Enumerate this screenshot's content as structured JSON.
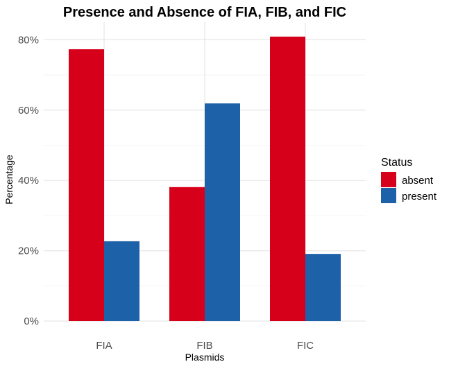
{
  "chart_data": {
    "type": "bar",
    "title": "Presence and Absence of FIA, FIB, and FIC",
    "xlabel": "Plasmids",
    "ylabel": "Percentage",
    "categories": [
      "FIA",
      "FIB",
      "FIC"
    ],
    "series": [
      {
        "name": "absent",
        "color": "#D7001A",
        "values": [
          77.3,
          38.1,
          80.9
        ]
      },
      {
        "name": "present",
        "color": "#1D62A8",
        "values": [
          22.7,
          61.9,
          19.1
        ]
      }
    ],
    "ylim": [
      0,
      85
    ],
    "yticks": [
      0,
      20,
      40,
      60,
      80
    ],
    "ytick_labels": [
      "0%",
      "20%",
      "40%",
      "60%",
      "80%"
    ],
    "grid": true,
    "legend": {
      "title": "Status",
      "placement": "right"
    }
  }
}
